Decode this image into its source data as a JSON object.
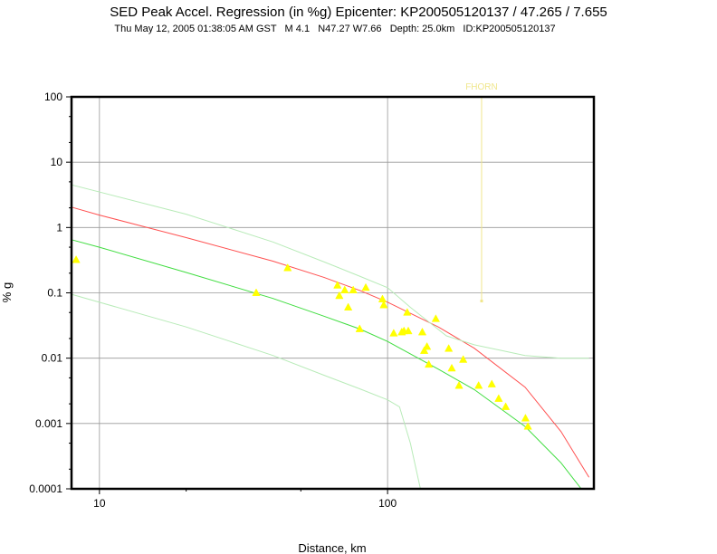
{
  "header": {
    "title": "SED Peak Accel. Regression (in %g) Epicenter: KP200505120137 / 47.265 / 7.655",
    "subtitle": "Thu May 12, 2005 01:38:05 AM GST   M 4.1   N47.27 W7.66   Depth: 25.0km   ID:KP200505120137"
  },
  "chart_data": {
    "type": "scatter",
    "title": "SED Peak Accel. Regression (in %g) Epicenter: KP200505120137 / 47.265 / 7.655",
    "xlabel": "Distance, km",
    "ylabel": "% g",
    "xscale": "log",
    "yscale": "log",
    "xlim": [
      8,
      520
    ],
    "ylim": [
      0.0001,
      100
    ],
    "grid": true,
    "x_tick_labels": [
      "10",
      "100"
    ],
    "x_tick_values": [
      10,
      100
    ],
    "y_tick_labels": [
      "100",
      "10",
      "1",
      "0.1",
      "0.01",
      "0.001",
      "0.0001"
    ],
    "y_tick_values": [
      100,
      10,
      1,
      0.1,
      0.01,
      0.001,
      0.0001
    ],
    "annotation": {
      "text": "FHORN",
      "x": 212,
      "y_top": 100,
      "y_bottom": 0.075,
      "color": "#f0e68c"
    },
    "series": [
      {
        "kind": "points",
        "color": "#ffff00",
        "x": [
          8.3,
          35,
          45,
          67,
          68,
          71,
          73,
          76,
          80,
          84,
          96,
          97,
          105,
          112,
          114,
          117,
          118,
          132,
          134,
          137,
          139,
          147,
          163,
          167,
          177,
          183,
          207,
          230,
          243,
          257,
          301,
          307
        ],
        "y": [
          0.32,
          0.1,
          0.24,
          0.13,
          0.09,
          0.11,
          0.06,
          0.11,
          0.028,
          0.12,
          0.08,
          0.065,
          0.024,
          0.025,
          0.026,
          0.05,
          0.026,
          0.025,
          0.013,
          0.015,
          0.008,
          0.04,
          0.014,
          0.007,
          0.0038,
          0.0095,
          0.0038,
          0.004,
          0.0024,
          0.0018,
          0.0012,
          0.0009
        ]
      },
      {
        "kind": "line",
        "color": "#ff5050",
        "x": [
          8,
          10,
          20,
          40,
          60,
          80,
          100,
          150,
          200,
          300,
          400,
          500
        ],
        "y": [
          2.05,
          1.55,
          0.7,
          0.305,
          0.173,
          0.109,
          0.072,
          0.03,
          0.0142,
          0.0036,
          0.00075,
          0.00015
        ]
      },
      {
        "kind": "line",
        "color": "#40dd40",
        "x": [
          8,
          10,
          20,
          40,
          60,
          80,
          100,
          150,
          200,
          300,
          400,
          470
        ],
        "y": [
          0.65,
          0.5,
          0.205,
          0.082,
          0.044,
          0.028,
          0.018,
          0.0068,
          0.0033,
          0.0009,
          0.00025,
          0.0001
        ]
      },
      {
        "kind": "line",
        "color": "#b8ebb8",
        "x": [
          8,
          20,
          40,
          60,
          80,
          100,
          120,
          140,
          160,
          200,
          250,
          300,
          400,
          500
        ],
        "y": [
          4.5,
          1.6,
          0.6,
          0.3,
          0.18,
          0.12,
          0.06,
          0.035,
          0.022,
          0.016,
          0.013,
          0.011,
          0.01,
          0.01
        ]
      },
      {
        "kind": "line",
        "color": "#b8ebb8",
        "x": [
          8,
          20,
          40,
          60,
          80,
          100,
          110,
          120,
          130
        ],
        "y": [
          0.095,
          0.03,
          0.011,
          0.0055,
          0.0034,
          0.0023,
          0.0018,
          0.0005,
          0.0001
        ]
      }
    ]
  }
}
